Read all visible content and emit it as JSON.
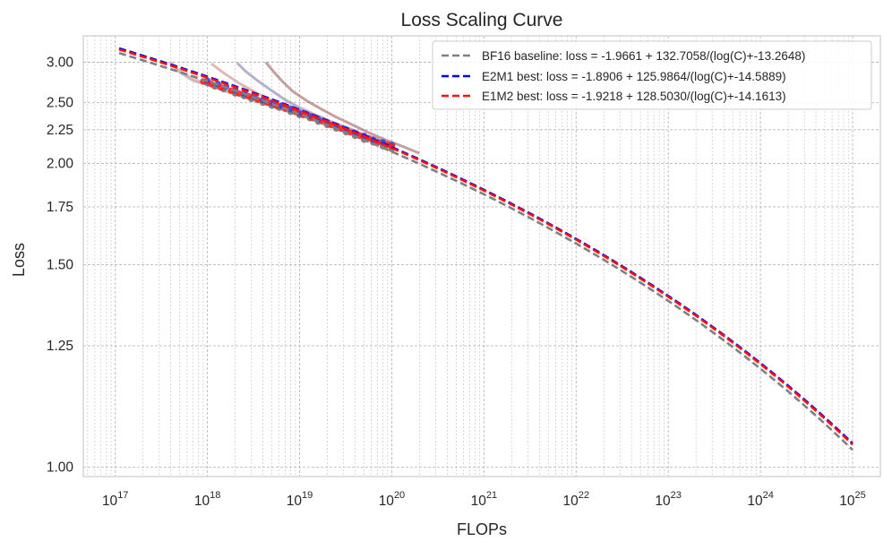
{
  "chart_data": {
    "type": "line",
    "title": "Loss Scaling Curve",
    "xlabel": "FLOPs",
    "ylabel": "Loss",
    "x_scale": "log",
    "y_scale": "reciprocal",
    "xlim": [
      4.5e+16,
      2e+25
    ],
    "ylim": [
      0.985,
      3.45
    ],
    "x_major_ticks": [
      1e+17,
      1e+18,
      1e+19,
      1e+20,
      1e+21,
      1e+22,
      1e+23,
      1e+24,
      1e+25
    ],
    "x_tick_labels": [
      {
        "base": "10",
        "exp": "17"
      },
      {
        "base": "10",
        "exp": "18"
      },
      {
        "base": "10",
        "exp": "19"
      },
      {
        "base": "10",
        "exp": "20"
      },
      {
        "base": "10",
        "exp": "21"
      },
      {
        "base": "10",
        "exp": "22"
      },
      {
        "base": "10",
        "exp": "23"
      },
      {
        "base": "10",
        "exp": "24"
      },
      {
        "base": "10",
        "exp": "25"
      }
    ],
    "y_ticks": [
      1.0,
      1.25,
      1.5,
      1.75,
      2.0,
      2.25,
      2.5,
      3.0
    ],
    "y_tick_labels": [
      "1.00",
      "1.25",
      "1.50",
      "1.75",
      "2.00",
      "2.25",
      "2.50",
      "3.00"
    ],
    "grid": true,
    "legend_position": "top-right",
    "fits": [
      {
        "name": "BF16 baseline: loss = -1.9661 + 132.7058/(log(C)+-13.2648)",
        "color": "#808080",
        "a": -1.9661,
        "b": 132.7058,
        "c": -13.2648
      },
      {
        "name": "E2M1 best: loss = -1.8906 + 125.9864/(log(C)+-14.5889)",
        "color": "#0000ee",
        "a": -1.8906,
        "b": 125.9864,
        "c": -14.5889
      },
      {
        "name": "E1M2 best: loss = -1.9218 + 128.5030/(log(C)+-14.1613)",
        "color": "#ff1010",
        "a": -1.9218,
        "b": 128.503,
        "c": -14.1613
      }
    ],
    "fit_x_range": [
      1.1e+17,
      1e+25
    ],
    "training_curves": [
      {
        "color": "#9a9a9a",
        "points": [
          [
            4e+17,
            2.98
          ],
          [
            5e+17,
            2.86
          ],
          [
            7e+17,
            2.75
          ],
          [
            1e+18,
            2.7
          ],
          [
            1.5e+18,
            2.63
          ],
          [
            2.5e+18,
            2.56
          ],
          [
            4e+18,
            2.5
          ],
          [
            6e+18,
            2.44
          ],
          [
            1e+19,
            2.38
          ],
          [
            1.6e+19,
            2.32
          ],
          [
            2.5e+19,
            2.26
          ],
          [
            4e+19,
            2.2
          ],
          [
            6e+19,
            2.16
          ],
          [
            9e+19,
            2.12
          ]
        ]
      },
      {
        "color": "#e8a0a0",
        "points": [
          [
            4e+17,
            3.0
          ],
          [
            5e+17,
            2.88
          ],
          [
            7e+17,
            2.77
          ],
          [
            1e+18,
            2.71
          ],
          [
            1.5e+18,
            2.64
          ],
          [
            2.5e+18,
            2.57
          ],
          [
            4e+18,
            2.51
          ],
          [
            6e+18,
            2.45
          ],
          [
            1e+19,
            2.39
          ],
          [
            1.6e+19,
            2.33
          ],
          [
            2.5e+19,
            2.27
          ],
          [
            4e+19,
            2.21
          ],
          [
            6e+19,
            2.17
          ],
          [
            9e+19,
            2.13
          ]
        ]
      },
      {
        "color": "#c98a8a",
        "points": [
          [
            1.1e+18,
            2.98
          ],
          [
            1.5e+18,
            2.85
          ],
          [
            2.2e+18,
            2.72
          ],
          [
            3.5e+18,
            2.6
          ],
          [
            5.5e+18,
            2.5
          ],
          [
            8e+18,
            2.44
          ],
          [
            1.2e+19,
            2.38
          ],
          [
            1.8e+19,
            2.32
          ],
          [
            2.8e+19,
            2.26
          ],
          [
            4.5e+19,
            2.2
          ],
          [
            7e+19,
            2.16
          ],
          [
            1e+20,
            2.13
          ]
        ]
      },
      {
        "color": "#7f7fa8",
        "points": [
          [
            2.1e+18,
            2.99
          ],
          [
            2.6e+18,
            2.87
          ],
          [
            3.5e+18,
            2.75
          ],
          [
            5e+18,
            2.63
          ],
          [
            7e+18,
            2.53
          ],
          [
            1e+19,
            2.45
          ],
          [
            1.5e+19,
            2.38
          ],
          [
            2.2e+19,
            2.32
          ],
          [
            3.5e+19,
            2.26
          ],
          [
            5e+19,
            2.21
          ],
          [
            8e+19,
            2.16
          ],
          [
            1.1e+20,
            2.13
          ]
        ]
      },
      {
        "color": "#a06060",
        "points": [
          [
            4.3e+18,
            3.0
          ],
          [
            5.2e+18,
            2.87
          ],
          [
            6.5e+18,
            2.74
          ],
          [
            8.5e+18,
            2.62
          ],
          [
            1.2e+19,
            2.52
          ],
          [
            1.7e+19,
            2.44
          ],
          [
            2.5e+19,
            2.36
          ],
          [
            3.8e+19,
            2.29
          ],
          [
            5.5e+19,
            2.23
          ],
          [
            8.5e+19,
            2.17
          ],
          [
            1.3e+20,
            2.12
          ],
          [
            2e+20,
            2.07
          ]
        ]
      }
    ],
    "scatter_series": [
      {
        "name": "BF16",
        "color": "#6e6e6e",
        "points": [
          [
            1e+18,
            2.72
          ],
          [
            1.2e+18,
            2.68
          ],
          [
            1.5e+18,
            2.65
          ],
          [
            2e+18,
            2.6
          ],
          [
            2.5e+18,
            2.57
          ],
          [
            3e+18,
            2.54
          ],
          [
            4e+18,
            2.5
          ],
          [
            5e+18,
            2.47
          ],
          [
            6e+18,
            2.45
          ],
          [
            8e+18,
            2.41
          ],
          [
            1e+19,
            2.38
          ],
          [
            1.3e+19,
            2.35
          ],
          [
            1.6e+19,
            2.32
          ],
          [
            2e+19,
            2.29
          ],
          [
            2.5e+19,
            2.26
          ],
          [
            3.2e+19,
            2.23
          ],
          [
            4e+19,
            2.2
          ],
          [
            5e+19,
            2.17
          ],
          [
            6.3e+19,
            2.15
          ],
          [
            8e+19,
            2.12
          ],
          [
            1e+20,
            2.1
          ]
        ]
      },
      {
        "name": "E2M1",
        "color": "#3a3ad6",
        "points": [
          [
            1e+18,
            2.75
          ],
          [
            1.3e+18,
            2.71
          ],
          [
            1.6e+18,
            2.68
          ],
          [
            2e+18,
            2.64
          ],
          [
            2.5e+18,
            2.6
          ],
          [
            3.2e+18,
            2.57
          ],
          [
            4e+18,
            2.53
          ],
          [
            5e+18,
            2.5
          ],
          [
            6.3e+18,
            2.47
          ],
          [
            8e+18,
            2.44
          ],
          [
            1e+19,
            2.4
          ],
          [
            1.3e+19,
            2.37
          ],
          [
            1.6e+19,
            2.34
          ],
          [
            2e+19,
            2.31
          ],
          [
            2.5e+19,
            2.28
          ],
          [
            3.2e+19,
            2.25
          ],
          [
            4e+19,
            2.22
          ],
          [
            5e+19,
            2.2
          ],
          [
            6.3e+19,
            2.17
          ],
          [
            8e+19,
            2.15
          ],
          [
            1e+20,
            2.13
          ]
        ]
      },
      {
        "name": "E1M2",
        "color": "#ff1a1a",
        "points": [
          [
            9e+17,
            2.74
          ],
          [
            1.1e+18,
            2.71
          ],
          [
            1.4e+18,
            2.67
          ],
          [
            1.8e+18,
            2.63
          ],
          [
            2.2e+18,
            2.6
          ],
          [
            2.8e+18,
            2.57
          ],
          [
            3.5e+18,
            2.53
          ],
          [
            4.5e+18,
            2.5
          ],
          [
            5.6e+18,
            2.47
          ],
          [
            7e+18,
            2.44
          ],
          [
            9e+18,
            2.41
          ],
          [
            1.1e+19,
            2.38
          ],
          [
            1.4e+19,
            2.35
          ],
          [
            1.8e+19,
            2.32
          ],
          [
            2.2e+19,
            2.29
          ],
          [
            2.8e+19,
            2.26
          ],
          [
            3.5e+19,
            2.23
          ],
          [
            4.5e+19,
            2.2
          ],
          [
            5.6e+19,
            2.18
          ],
          [
            7e+19,
            2.15
          ],
          [
            9e+19,
            2.13
          ],
          [
            1e+20,
            2.12
          ]
        ]
      }
    ]
  }
}
